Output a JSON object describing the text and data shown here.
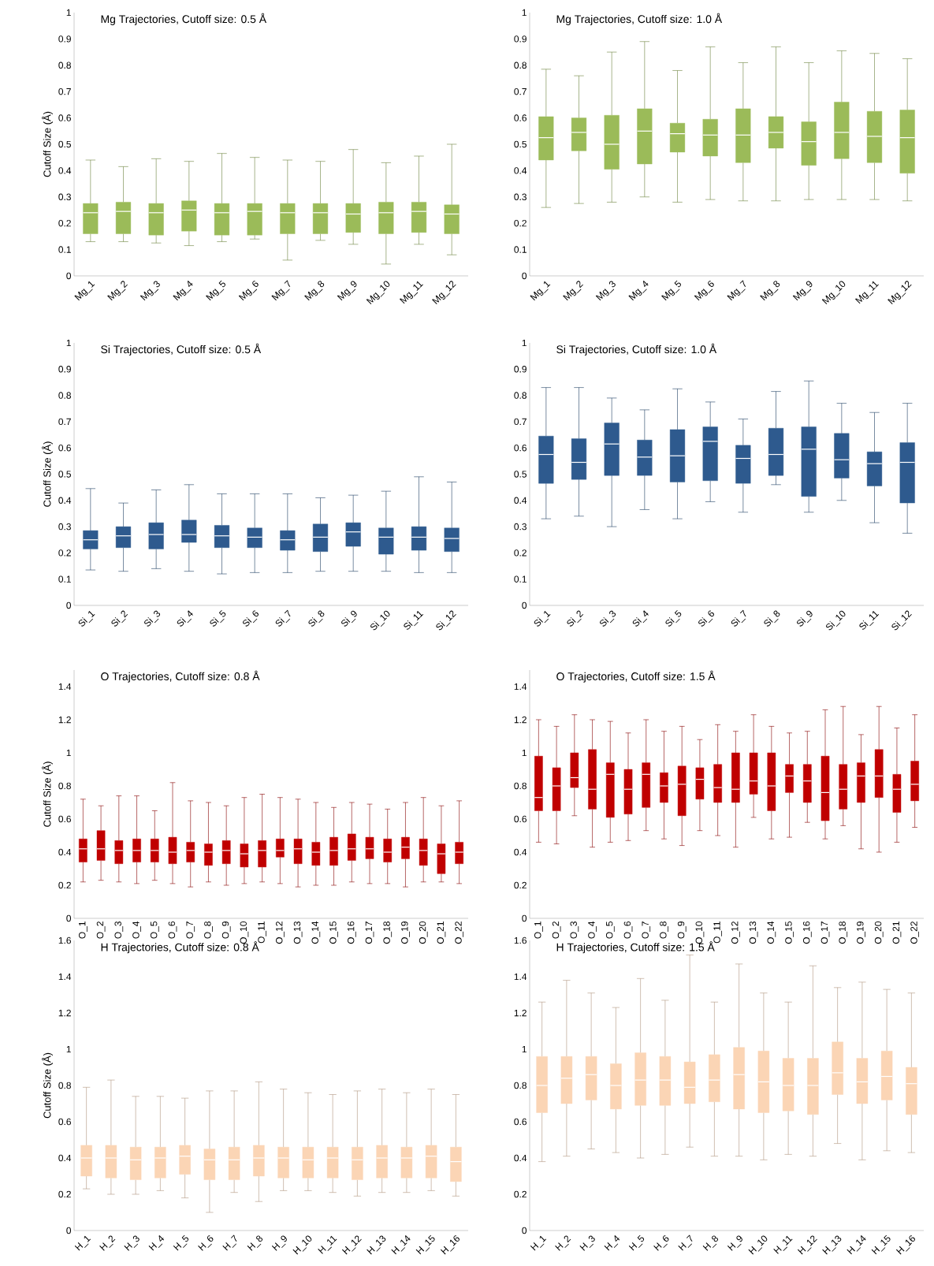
{
  "chart_data": [
    {
      "type": "box",
      "title": "Mg Trajectories, Cutoff size: 0.5 Å",
      "ylabel": "Cutoff Size (Å)",
      "categories": [
        "Mg_1",
        "Mg_2",
        "Mg_3",
        "Mg_4",
        "Mg_5",
        "Mg_6",
        "Mg_7",
        "Mg_8",
        "Mg_9",
        "Mg_10",
        "Mg_11",
        "Mg_12"
      ],
      "ylim": [
        0,
        1
      ],
      "yticks": [
        0,
        0.1,
        0.2,
        0.3,
        0.4,
        0.5,
        0.6,
        0.7,
        0.8,
        0.9,
        1
      ],
      "series": [
        {
          "color": "#9bbb59",
          "boxes": [
            {
              "low": 0.13,
              "q1": 0.16,
              "median": 0.24,
              "q3": 0.275,
              "high": 0.44
            },
            {
              "low": 0.13,
              "q1": 0.16,
              "median": 0.245,
              "q3": 0.28,
              "high": 0.415
            },
            {
              "low": 0.125,
              "q1": 0.155,
              "median": 0.24,
              "q3": 0.275,
              "high": 0.445
            },
            {
              "low": 0.115,
              "q1": 0.17,
              "median": 0.25,
              "q3": 0.285,
              "high": 0.435
            },
            {
              "low": 0.13,
              "q1": 0.155,
              "median": 0.24,
              "q3": 0.275,
              "high": 0.465
            },
            {
              "low": 0.14,
              "q1": 0.155,
              "median": 0.245,
              "q3": 0.275,
              "high": 0.45
            },
            {
              "low": 0.06,
              "q1": 0.16,
              "median": 0.24,
              "q3": 0.275,
              "high": 0.44
            },
            {
              "low": 0.135,
              "q1": 0.16,
              "median": 0.24,
              "q3": 0.275,
              "high": 0.435
            },
            {
              "low": 0.12,
              "q1": 0.165,
              "median": 0.235,
              "q3": 0.275,
              "high": 0.48
            },
            {
              "low": 0.045,
              "q1": 0.16,
              "median": 0.24,
              "q3": 0.28,
              "high": 0.43
            },
            {
              "low": 0.12,
              "q1": 0.165,
              "median": 0.245,
              "q3": 0.28,
              "high": 0.455
            },
            {
              "low": 0.08,
              "q1": 0.16,
              "median": 0.235,
              "q3": 0.27,
              "high": 0.5
            }
          ]
        }
      ]
    },
    {
      "type": "box",
      "title": "Mg Trajectories, Cutoff size: 1.0 Å",
      "categories": [
        "Mg_1",
        "Mg_2",
        "Mg_3",
        "Mg_4",
        "Mg_5",
        "Mg_6",
        "Mg_7",
        "Mg_8",
        "Mg_9",
        "Mg_10",
        "Mg_11",
        "Mg_12"
      ],
      "ylim": [
        0,
        1
      ],
      "yticks": [
        0,
        0.1,
        0.2,
        0.3,
        0.4,
        0.5,
        0.6,
        0.7,
        0.8,
        0.9,
        1
      ],
      "series": [
        {
          "color": "#9bbb59",
          "boxes": [
            {
              "low": 0.26,
              "q1": 0.44,
              "median": 0.525,
              "q3": 0.605,
              "high": 0.785
            },
            {
              "low": 0.275,
              "q1": 0.475,
              "median": 0.545,
              "q3": 0.6,
              "high": 0.76
            },
            {
              "low": 0.28,
              "q1": 0.405,
              "median": 0.5,
              "q3": 0.61,
              "high": 0.85
            },
            {
              "low": 0.3,
              "q1": 0.425,
              "median": 0.55,
              "q3": 0.635,
              "high": 0.89
            },
            {
              "low": 0.28,
              "q1": 0.47,
              "median": 0.54,
              "q3": 0.58,
              "high": 0.78
            },
            {
              "low": 0.29,
              "q1": 0.455,
              "median": 0.535,
              "q3": 0.595,
              "high": 0.87
            },
            {
              "low": 0.285,
              "q1": 0.43,
              "median": 0.535,
              "q3": 0.635,
              "high": 0.81
            },
            {
              "low": 0.285,
              "q1": 0.485,
              "median": 0.545,
              "q3": 0.605,
              "high": 0.87
            },
            {
              "low": 0.29,
              "q1": 0.42,
              "median": 0.51,
              "q3": 0.585,
              "high": 0.81
            },
            {
              "low": 0.29,
              "q1": 0.445,
              "median": 0.545,
              "q3": 0.66,
              "high": 0.855
            },
            {
              "low": 0.29,
              "q1": 0.43,
              "median": 0.53,
              "q3": 0.625,
              "high": 0.845
            },
            {
              "low": 0.285,
              "q1": 0.39,
              "median": 0.525,
              "q3": 0.63,
              "high": 0.825
            }
          ]
        }
      ]
    },
    {
      "type": "box",
      "title": "Si Trajectories, Cutoff size: 0.5 Å",
      "ylabel": "Cutoff Size (Å)",
      "categories": [
        "Si_1",
        "Si_2",
        "Si_3",
        "Si_4",
        "Si_5",
        "Si_6",
        "Si_7",
        "Si_8",
        "Si_9",
        "Si_10",
        "Si_11",
        "Si_12"
      ],
      "ylim": [
        0,
        1
      ],
      "yticks": [
        0,
        0.1,
        0.2,
        0.3,
        0.4,
        0.5,
        0.6,
        0.7,
        0.8,
        0.9,
        1
      ],
      "series": [
        {
          "color": "#2e5a8e",
          "boxes": [
            {
              "low": 0.135,
              "q1": 0.215,
              "median": 0.25,
              "q3": 0.285,
              "high": 0.445
            },
            {
              "low": 0.13,
              "q1": 0.22,
              "median": 0.265,
              "q3": 0.3,
              "high": 0.39
            },
            {
              "low": 0.14,
              "q1": 0.215,
              "median": 0.27,
              "q3": 0.315,
              "high": 0.44
            },
            {
              "low": 0.13,
              "q1": 0.24,
              "median": 0.27,
              "q3": 0.325,
              "high": 0.46
            },
            {
              "low": 0.12,
              "q1": 0.22,
              "median": 0.265,
              "q3": 0.305,
              "high": 0.425
            },
            {
              "low": 0.125,
              "q1": 0.22,
              "median": 0.26,
              "q3": 0.295,
              "high": 0.425
            },
            {
              "low": 0.125,
              "q1": 0.21,
              "median": 0.25,
              "q3": 0.285,
              "high": 0.425
            },
            {
              "low": 0.13,
              "q1": 0.205,
              "median": 0.26,
              "q3": 0.31,
              "high": 0.41
            },
            {
              "low": 0.13,
              "q1": 0.225,
              "median": 0.28,
              "q3": 0.315,
              "high": 0.42
            },
            {
              "low": 0.13,
              "q1": 0.195,
              "median": 0.26,
              "q3": 0.295,
              "high": 0.435
            },
            {
              "low": 0.125,
              "q1": 0.21,
              "median": 0.26,
              "q3": 0.3,
              "high": 0.49
            },
            {
              "low": 0.125,
              "q1": 0.205,
              "median": 0.255,
              "q3": 0.295,
              "high": 0.47
            }
          ]
        }
      ]
    },
    {
      "type": "box",
      "title": "Si Trajectories, Cutoff size: 1.0 Å",
      "categories": [
        "Si_1",
        "Si_2",
        "Si_3",
        "Si_4",
        "Si_5",
        "Si_6",
        "Si_7",
        "Si_8",
        "Si_9",
        "Si_10",
        "Si_11",
        "Si_12"
      ],
      "ylim": [
        0,
        1
      ],
      "yticks": [
        0,
        0.1,
        0.2,
        0.3,
        0.4,
        0.5,
        0.6,
        0.7,
        0.8,
        0.9,
        1
      ],
      "series": [
        {
          "color": "#2e5a8e",
          "boxes": [
            {
              "low": 0.33,
              "q1": 0.465,
              "median": 0.575,
              "q3": 0.645,
              "high": 0.83
            },
            {
              "low": 0.34,
              "q1": 0.48,
              "median": 0.545,
              "q3": 0.635,
              "high": 0.83
            },
            {
              "low": 0.3,
              "q1": 0.495,
              "median": 0.615,
              "q3": 0.695,
              "high": 0.79
            },
            {
              "low": 0.365,
              "q1": 0.495,
              "median": 0.565,
              "q3": 0.63,
              "high": 0.745
            },
            {
              "low": 0.33,
              "q1": 0.47,
              "median": 0.57,
              "q3": 0.67,
              "high": 0.825
            },
            {
              "low": 0.395,
              "q1": 0.475,
              "median": 0.625,
              "q3": 0.68,
              "high": 0.775
            },
            {
              "low": 0.355,
              "q1": 0.465,
              "median": 0.56,
              "q3": 0.61,
              "high": 0.71
            },
            {
              "low": 0.46,
              "q1": 0.495,
              "median": 0.575,
              "q3": 0.675,
              "high": 0.815
            },
            {
              "low": 0.355,
              "q1": 0.415,
              "median": 0.595,
              "q3": 0.68,
              "high": 0.855
            },
            {
              "low": 0.4,
              "q1": 0.485,
              "median": 0.555,
              "q3": 0.655,
              "high": 0.77
            },
            {
              "low": 0.315,
              "q1": 0.455,
              "median": 0.54,
              "q3": 0.585,
              "high": 0.735
            },
            {
              "low": 0.275,
              "q1": 0.39,
              "median": 0.545,
              "q3": 0.62,
              "high": 0.77
            }
          ]
        }
      ]
    },
    {
      "type": "box",
      "title": "O Trajectories, Cutoff size: 0.8 Å",
      "ylabel": "Cutoff Size (Å)",
      "categories": [
        "O_1",
        "O_2",
        "O_3",
        "O_4",
        "O_5",
        "O_6",
        "O_7",
        "O_8",
        "O_9",
        "O_10",
        "O_11",
        "O_12",
        "O_13",
        "O_14",
        "O_15",
        "O_16",
        "O_17",
        "O_18",
        "O_19",
        "O_20",
        "O_21",
        "O_22"
      ],
      "ylim": [
        0,
        1.5
      ],
      "yticks": [
        0,
        0.2,
        0.4,
        0.6,
        0.8,
        1,
        1.2,
        1.4
      ],
      "series": [
        {
          "color": "#c00000",
          "boxes": [
            {
              "low": 0.22,
              "q1": 0.34,
              "median": 0.42,
              "q3": 0.48,
              "high": 0.72
            },
            {
              "low": 0.23,
              "q1": 0.35,
              "median": 0.42,
              "q3": 0.53,
              "high": 0.68
            },
            {
              "low": 0.22,
              "q1": 0.33,
              "median": 0.41,
              "q3": 0.47,
              "high": 0.74
            },
            {
              "low": 0.21,
              "q1": 0.34,
              "median": 0.41,
              "q3": 0.48,
              "high": 0.74
            },
            {
              "low": 0.23,
              "q1": 0.34,
              "median": 0.41,
              "q3": 0.48,
              "high": 0.65
            },
            {
              "low": 0.21,
              "q1": 0.33,
              "median": 0.4,
              "q3": 0.49,
              "high": 0.82
            },
            {
              "low": 0.19,
              "q1": 0.34,
              "median": 0.41,
              "q3": 0.46,
              "high": 0.71
            },
            {
              "low": 0.22,
              "q1": 0.32,
              "median": 0.4,
              "q3": 0.45,
              "high": 0.7
            },
            {
              "low": 0.2,
              "q1": 0.33,
              "median": 0.41,
              "q3": 0.47,
              "high": 0.68
            },
            {
              "low": 0.21,
              "q1": 0.31,
              "median": 0.39,
              "q3": 0.45,
              "high": 0.73
            },
            {
              "low": 0.22,
              "q1": 0.31,
              "median": 0.41,
              "q3": 0.47,
              "high": 0.75
            },
            {
              "low": 0.21,
              "q1": 0.37,
              "median": 0.41,
              "q3": 0.48,
              "high": 0.73
            },
            {
              "low": 0.19,
              "q1": 0.33,
              "median": 0.42,
              "q3": 0.48,
              "high": 0.72
            },
            {
              "low": 0.2,
              "q1": 0.32,
              "median": 0.4,
              "q3": 0.46,
              "high": 0.7
            },
            {
              "low": 0.2,
              "q1": 0.32,
              "median": 0.41,
              "q3": 0.49,
              "high": 0.67
            },
            {
              "low": 0.22,
              "q1": 0.35,
              "median": 0.42,
              "q3": 0.51,
              "high": 0.7
            },
            {
              "low": 0.21,
              "q1": 0.36,
              "median": 0.42,
              "q3": 0.49,
              "high": 0.69
            },
            {
              "low": 0.21,
              "q1": 0.34,
              "median": 0.4,
              "q3": 0.48,
              "high": 0.66
            },
            {
              "low": 0.19,
              "q1": 0.36,
              "median": 0.43,
              "q3": 0.49,
              "high": 0.7
            },
            {
              "low": 0.22,
              "q1": 0.32,
              "median": 0.41,
              "q3": 0.48,
              "high": 0.73
            },
            {
              "low": 0.22,
              "q1": 0.27,
              "median": 0.39,
              "q3": 0.45,
              "high": 0.68
            },
            {
              "low": 0.21,
              "q1": 0.33,
              "median": 0.4,
              "q3": 0.46,
              "high": 0.71
            }
          ]
        }
      ]
    },
    {
      "type": "box",
      "title": "O Trajectories, Cutoff size: 1.5 Å",
      "categories": [
        "O_1",
        "O_2",
        "O_3",
        "O_4",
        "O_5",
        "O_6",
        "O_7",
        "O_8",
        "O_9",
        "O_10",
        "O_11",
        "O_12",
        "O_13",
        "O_14",
        "O_15",
        "O_16",
        "O_17",
        "O_18",
        "O_19",
        "O_20",
        "O_21",
        "O_22"
      ],
      "ylim": [
        0,
        1.5
      ],
      "yticks": [
        0,
        0.2,
        0.4,
        0.6,
        0.8,
        1,
        1.2,
        1.4
      ],
      "series": [
        {
          "color": "#c00000",
          "boxes": [
            {
              "low": 0.46,
              "q1": 0.65,
              "median": 0.73,
              "q3": 0.98,
              "high": 1.2
            },
            {
              "low": 0.45,
              "q1": 0.65,
              "median": 0.8,
              "q3": 0.91,
              "high": 1.16
            },
            {
              "low": 0.62,
              "q1": 0.79,
              "median": 0.85,
              "q3": 1.0,
              "high": 1.23
            },
            {
              "low": 0.43,
              "q1": 0.66,
              "median": 0.78,
              "q3": 1.02,
              "high": 1.2
            },
            {
              "low": 0.46,
              "q1": 0.61,
              "median": 0.87,
              "q3": 0.94,
              "high": 1.19
            },
            {
              "low": 0.47,
              "q1": 0.63,
              "median": 0.78,
              "q3": 0.9,
              "high": 1.12
            },
            {
              "low": 0.53,
              "q1": 0.67,
              "median": 0.87,
              "q3": 0.94,
              "high": 1.2
            },
            {
              "low": 0.48,
              "q1": 0.7,
              "median": 0.8,
              "q3": 0.88,
              "high": 1.13
            },
            {
              "low": 0.44,
              "q1": 0.62,
              "median": 0.81,
              "q3": 0.92,
              "high": 1.16
            },
            {
              "low": 0.53,
              "q1": 0.72,
              "median": 0.84,
              "q3": 0.91,
              "high": 1.08
            },
            {
              "low": 0.5,
              "q1": 0.7,
              "median": 0.79,
              "q3": 0.93,
              "high": 1.17
            },
            {
              "low": 0.43,
              "q1": 0.7,
              "median": 0.78,
              "q3": 1.0,
              "high": 1.13
            },
            {
              "low": 0.61,
              "q1": 0.75,
              "median": 0.83,
              "q3": 1.0,
              "high": 1.23
            },
            {
              "low": 0.48,
              "q1": 0.65,
              "median": 0.8,
              "q3": 1.0,
              "high": 1.16
            },
            {
              "low": 0.49,
              "q1": 0.76,
              "median": 0.86,
              "q3": 0.93,
              "high": 1.12
            },
            {
              "low": 0.58,
              "q1": 0.7,
              "median": 0.83,
              "q3": 0.93,
              "high": 1.13
            },
            {
              "low": 0.48,
              "q1": 0.59,
              "median": 0.76,
              "q3": 0.98,
              "high": 1.26
            },
            {
              "low": 0.56,
              "q1": 0.66,
              "median": 0.78,
              "q3": 0.93,
              "high": 1.28
            },
            {
              "low": 0.42,
              "q1": 0.7,
              "median": 0.86,
              "q3": 0.94,
              "high": 1.11
            },
            {
              "low": 0.4,
              "q1": 0.73,
              "median": 0.86,
              "q3": 1.02,
              "high": 1.28
            },
            {
              "low": 0.46,
              "q1": 0.64,
              "median": 0.78,
              "q3": 0.87,
              "high": 1.15
            },
            {
              "low": 0.55,
              "q1": 0.71,
              "median": 0.81,
              "q3": 0.95,
              "high": 1.23
            }
          ]
        }
      ]
    },
    {
      "type": "box",
      "title": "H Trajectories, Cutoff size: 0.8 Å",
      "ylabel": "Cutoff Size (Å)",
      "categories": [
        "H_1",
        "H_2",
        "H_3",
        "H_4",
        "H_5",
        "H_6",
        "H_7",
        "H_8",
        "H_9",
        "H_10",
        "H_11",
        "H_12",
        "H_13",
        "H_14",
        "H_15",
        "H_16"
      ],
      "ylim": [
        0,
        1.6
      ],
      "yticks": [
        0,
        0.2,
        0.4,
        0.6,
        0.8,
        1,
        1.2,
        1.4,
        1.6
      ],
      "series": [
        {
          "color": "#fbd5b5",
          "boxes": [
            {
              "low": 0.23,
              "q1": 0.3,
              "median": 0.4,
              "q3": 0.47,
              "high": 0.79
            },
            {
              "low": 0.2,
              "q1": 0.29,
              "median": 0.4,
              "q3": 0.47,
              "high": 0.83
            },
            {
              "low": 0.2,
              "q1": 0.28,
              "median": 0.39,
              "q3": 0.46,
              "high": 0.74
            },
            {
              "low": 0.22,
              "q1": 0.29,
              "median": 0.4,
              "q3": 0.46,
              "high": 0.74
            },
            {
              "low": 0.18,
              "q1": 0.31,
              "median": 0.41,
              "q3": 0.47,
              "high": 0.73
            },
            {
              "low": 0.1,
              "q1": 0.28,
              "median": 0.39,
              "q3": 0.45,
              "high": 0.77
            },
            {
              "low": 0.21,
              "q1": 0.28,
              "median": 0.39,
              "q3": 0.46,
              "high": 0.77
            },
            {
              "low": 0.16,
              "q1": 0.3,
              "median": 0.4,
              "q3": 0.47,
              "high": 0.82
            },
            {
              "low": 0.22,
              "q1": 0.29,
              "median": 0.4,
              "q3": 0.46,
              "high": 0.78
            },
            {
              "low": 0.22,
              "q1": 0.29,
              "median": 0.39,
              "q3": 0.46,
              "high": 0.76
            },
            {
              "low": 0.21,
              "q1": 0.29,
              "median": 0.4,
              "q3": 0.46,
              "high": 0.75
            },
            {
              "low": 0.19,
              "q1": 0.28,
              "median": 0.39,
              "q3": 0.46,
              "high": 0.77
            },
            {
              "low": 0.21,
              "q1": 0.29,
              "median": 0.4,
              "q3": 0.47,
              "high": 0.78
            },
            {
              "low": 0.21,
              "q1": 0.29,
              "median": 0.4,
              "q3": 0.46,
              "high": 0.76
            },
            {
              "low": 0.22,
              "q1": 0.29,
              "median": 0.41,
              "q3": 0.47,
              "high": 0.78
            },
            {
              "low": 0.19,
              "q1": 0.27,
              "median": 0.38,
              "q3": 0.46,
              "high": 0.75
            }
          ]
        }
      ]
    },
    {
      "type": "box",
      "title": "H Trajectories, Cutoff size: 1.5 Å",
      "categories": [
        "H_1",
        "H_2",
        "H_3",
        "H_4",
        "H_5",
        "H_6",
        "H_7",
        "H_8",
        "H_9",
        "H_10",
        "H_11",
        "H_12",
        "H_13",
        "H_14",
        "H_15",
        "H_16"
      ],
      "ylim": [
        0,
        1.6
      ],
      "yticks": [
        0,
        0.2,
        0.4,
        0.6,
        0.8,
        1,
        1.2,
        1.4,
        1.6
      ],
      "series": [
        {
          "color": "#fbd5b5",
          "boxes": [
            {
              "low": 0.38,
              "q1": 0.65,
              "median": 0.8,
              "q3": 0.96,
              "high": 1.26
            },
            {
              "low": 0.41,
              "q1": 0.7,
              "median": 0.84,
              "q3": 0.96,
              "high": 1.38
            },
            {
              "low": 0.45,
              "q1": 0.72,
              "median": 0.86,
              "q3": 0.96,
              "high": 1.31
            },
            {
              "low": 0.43,
              "q1": 0.67,
              "median": 0.8,
              "q3": 0.92,
              "high": 1.23
            },
            {
              "low": 0.4,
              "q1": 0.69,
              "median": 0.83,
              "q3": 0.98,
              "high": 1.39
            },
            {
              "low": 0.42,
              "q1": 0.69,
              "median": 0.83,
              "q3": 0.96,
              "high": 1.27
            },
            {
              "low": 0.46,
              "q1": 0.7,
              "median": 0.79,
              "q3": 0.93,
              "high": 1.52
            },
            {
              "low": 0.41,
              "q1": 0.71,
              "median": 0.83,
              "q3": 0.97,
              "high": 1.26
            },
            {
              "low": 0.41,
              "q1": 0.67,
              "median": 0.86,
              "q3": 1.01,
              "high": 1.47
            },
            {
              "low": 0.39,
              "q1": 0.65,
              "median": 0.82,
              "q3": 0.99,
              "high": 1.31
            },
            {
              "low": 0.42,
              "q1": 0.66,
              "median": 0.8,
              "q3": 0.95,
              "high": 1.26
            },
            {
              "low": 0.41,
              "q1": 0.64,
              "median": 0.8,
              "q3": 0.95,
              "high": 1.46
            },
            {
              "low": 0.48,
              "q1": 0.75,
              "median": 0.87,
              "q3": 1.04,
              "high": 1.34
            },
            {
              "low": 0.39,
              "q1": 0.7,
              "median": 0.82,
              "q3": 0.95,
              "high": 1.37
            },
            {
              "low": 0.44,
              "q1": 0.72,
              "median": 0.85,
              "q3": 0.99,
              "high": 1.33
            },
            {
              "low": 0.43,
              "q1": 0.64,
              "median": 0.81,
              "q3": 0.9,
              "high": 1.31
            }
          ]
        }
      ]
    }
  ]
}
